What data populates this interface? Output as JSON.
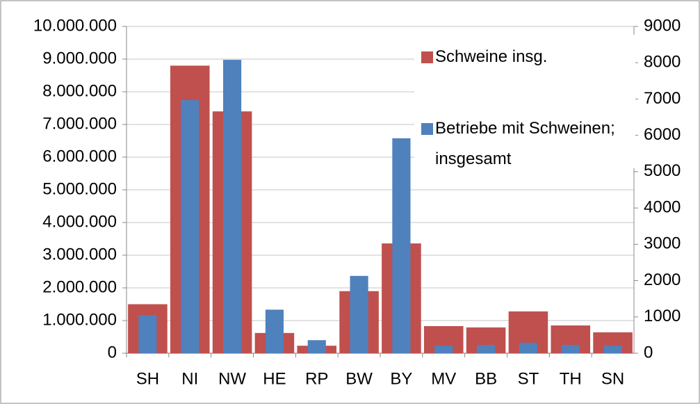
{
  "chart_data": {
    "type": "bar",
    "categories": [
      "SH",
      "NI",
      "NW",
      "HE",
      "RP",
      "BW",
      "BY",
      "MV",
      "BB",
      "ST",
      "TH",
      "SN"
    ],
    "series": [
      {
        "name": "Schweine insg.",
        "color": "#c0504d",
        "values": [
          1500000,
          8800000,
          7400000,
          620000,
          230000,
          1900000,
          3360000,
          830000,
          790000,
          1280000,
          850000,
          640000
        ]
      },
      {
        "name": "Betriebe mit Schweinen; insgesamt",
        "color": "#4f81bd",
        "axis": "y2",
        "values": [
          1050,
          6970,
          8080,
          1200,
          360,
          2130,
          5920,
          210,
          230,
          290,
          230,
          210
        ]
      }
    ],
    "ylim": [
      0,
      10000000
    ],
    "yticks": [
      0,
      {
        "value": 1000000,
        "label": "1.000.000"
      },
      {
        "value": 2000000,
        "label": "2.000.000"
      },
      {
        "value": 3000000,
        "label": "3.000.000"
      },
      {
        "value": 4000000,
        "label": "4.000.000"
      },
      {
        "value": 5000000,
        "label": "5.000.000"
      },
      {
        "value": 6000000,
        "label": "6.000.000"
      },
      {
        "value": 7000000,
        "label": "7.000.000"
      },
      {
        "value": 8000000,
        "label": "8.000.000"
      },
      {
        "value": 9000000,
        "label": "9.000.000"
      },
      {
        "value": 10000000,
        "label": "10.000.000"
      }
    ],
    "y2lim": [
      0,
      9000
    ],
    "y2ticks": [
      0,
      1000,
      2000,
      3000,
      4000,
      5000,
      6000,
      7000,
      8000,
      9000
    ],
    "grid": true,
    "legend": "upper right"
  }
}
